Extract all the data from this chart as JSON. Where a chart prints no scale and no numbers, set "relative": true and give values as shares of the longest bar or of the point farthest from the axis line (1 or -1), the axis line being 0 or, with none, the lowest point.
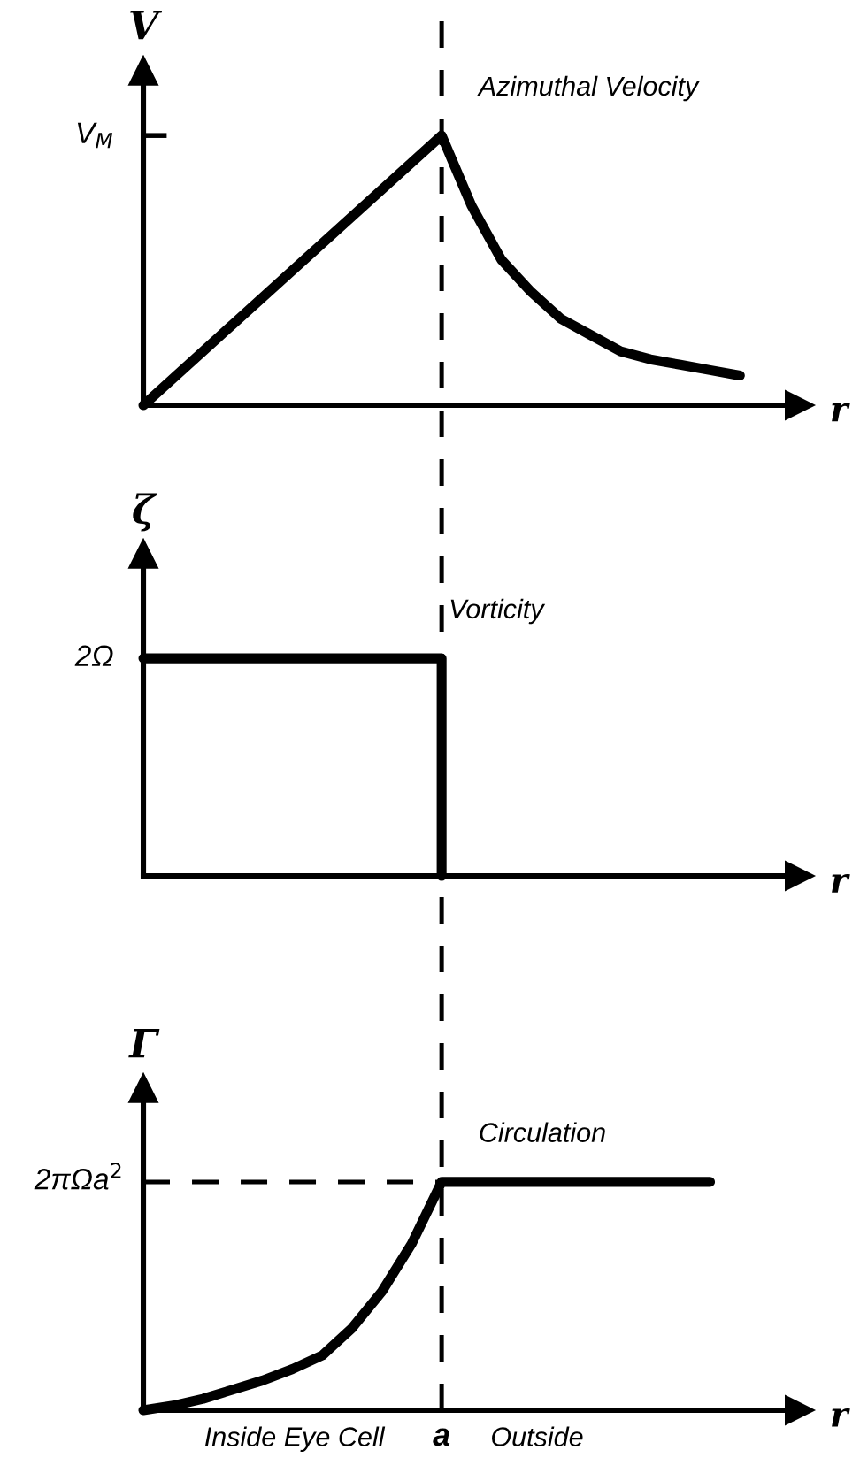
{
  "chart_data": [
    {
      "type": "line",
      "relative": true,
      "ylabel": "V",
      "xlabel": "r",
      "line_style": "solid",
      "marker": "none",
      "categories": [
        null,
        null,
        null,
        null,
        null,
        null,
        null,
        null,
        null,
        null,
        null,
        null,
        null,
        null,
        null,
        null,
        null,
        null,
        null,
        null,
        null
      ],
      "series": [
        {
          "name": "Azimuthal Velocity",
          "color": "#000000",
          "values": [
            0,
            0.1,
            0.2,
            0.3,
            0.4,
            0.5,
            0.6,
            0.7,
            0.8,
            0.9,
            1,
            0.74,
            0.54,
            0.42,
            0.32,
            0.26,
            0.2,
            0.17,
            0.15,
            0.13,
            0.11
          ]
        }
      ],
      "annotations": [
        "V$_{M}$"
      ]
    },
    {
      "type": "step",
      "relative": true,
      "ylabel": "ζ",
      "xlabel": "r",
      "line_style": "solid",
      "marker": "none",
      "categories": [
        null,
        null,
        null,
        null,
        null,
        null,
        null,
        null,
        null,
        null,
        null,
        null,
        null,
        null,
        null,
        null,
        null,
        null,
        null,
        null,
        null
      ],
      "series": [
        {
          "name": "Vorticity",
          "color": "#000000",
          "values": [
            1,
            1,
            1,
            1,
            1,
            1,
            1,
            1,
            1,
            1,
            0,
            null,
            null,
            null,
            null,
            null,
            null,
            null,
            null,
            null,
            null
          ]
        }
      ],
      "annotations": [
        "2Ω"
      ]
    },
    {
      "type": "line",
      "relative": true,
      "ylabel": "Γ",
      "xlabel": "r",
      "line_style": "solid",
      "marker": "none",
      "categories": [
        null,
        null,
        null,
        null,
        null,
        null,
        null,
        null,
        null,
        null,
        null,
        null,
        null,
        null,
        null,
        null,
        null,
        null,
        null,
        null,
        null
      ],
      "series": [
        {
          "name": "Circulation",
          "color": "#000000",
          "values": [
            0,
            0.02,
            0.05,
            0.09,
            0.13,
            0.18,
            0.24,
            0.36,
            0.52,
            0.73,
            1,
            1,
            1,
            1,
            1,
            1,
            1,
            1,
            1,
            1,
            null
          ]
        }
      ],
      "annotations": [
        "Inside Eye Cell",
        "Outside"
      ],
      "ref_lines": [
        {
          "axis": "x",
          "value": "a",
          "label": null,
          "line_style": "dashed",
          "color": "#000000"
        },
        {
          "axis": "y",
          "value": 1,
          "label": "2πΩa$^{2}$",
          "line_style": "dashed",
          "color": "#000000"
        }
      ]
    }
  ]
}
